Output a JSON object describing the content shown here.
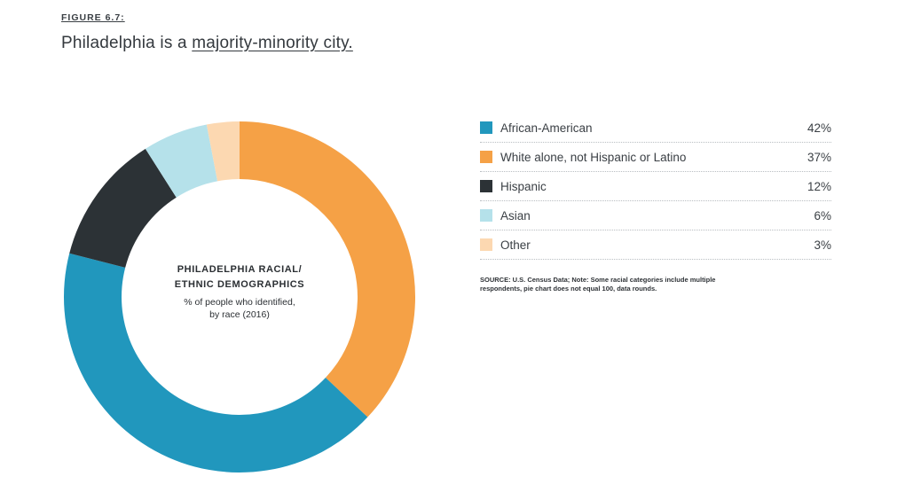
{
  "figure_label": "FIGURE 6.7:",
  "headline": {
    "prefix": "Philadelphia is a ",
    "link_text": "majority-minority city."
  },
  "center": {
    "title_line1": "PHILADELPHIA RACIAL/",
    "title_line2": "ETHNIC DEMOGRAPHICS",
    "sub_line1": "% of people who identified,",
    "sub_line2": "by race (2016)"
  },
  "source_note": "SOURCE: U.S. Census Data; Note: Some racial categories include multiple respondents, pie chart does not equal 100, data rounds.",
  "chart_data": {
    "type": "pie",
    "subtype": "donut",
    "title": "PHILADELPHIA RACIAL/ ETHNIC DEMOGRAPHICS",
    "subtitle": "% of people who identified, by race (2016)",
    "legend_position": "right",
    "slices": [
      {
        "label": "African-American",
        "value": 42,
        "display": "42%",
        "color": "#2197bd"
      },
      {
        "label": "White alone, not Hispanic or Latino",
        "value": 37,
        "display": "37%",
        "color": "#f5a146"
      },
      {
        "label": "Hispanic",
        "value": 12,
        "display": "12%",
        "color": "#2c3236"
      },
      {
        "label": "Asian",
        "value": 6,
        "display": "6%",
        "color": "#b5e1ea"
      },
      {
        "label": "Other",
        "value": 3,
        "display": "3%",
        "color": "#fcd8b1"
      }
    ],
    "draw_order": [
      "White alone, not Hispanic or Latino",
      "African-American",
      "Hispanic",
      "Asian",
      "Other"
    ]
  }
}
